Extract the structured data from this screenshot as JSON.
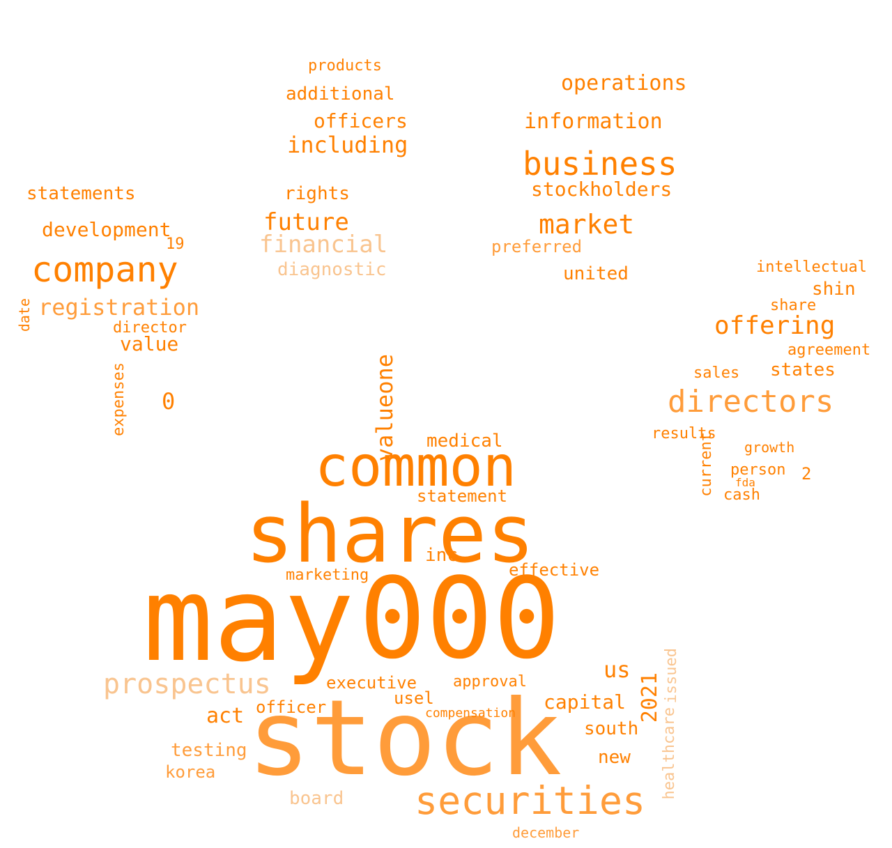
{
  "palette": {
    "strong": "#ff8000",
    "medium": "#ff9c3a",
    "light": "#f9c48f",
    "faint": "#f9dcc0"
  },
  "words": [
    "may",
    "000",
    "stock",
    "shares",
    "common",
    "securities",
    "prospectus",
    "company",
    "business",
    "directors",
    "offering",
    "market",
    "information",
    "financial",
    "registration",
    "including",
    "future",
    "development",
    "statements",
    "officers",
    "operations",
    "stockholders",
    "additional",
    "products",
    "preferred",
    "united",
    "diagnostic",
    "rights",
    "valueone",
    "medical",
    "statement",
    "board",
    "capital",
    "act",
    "testing",
    "korea",
    "south",
    "new",
    "executive",
    "2021",
    "us",
    "inc",
    "effective",
    "marketing",
    "approval",
    "compensation",
    "officer",
    "usel",
    "healthcare",
    "issued",
    "december",
    "value",
    "director",
    "expenses",
    "date",
    "0",
    "19",
    "intellectual",
    "shin",
    "share",
    "agreement",
    "states",
    "sales",
    "results",
    "current",
    "cash",
    "person",
    "growth",
    "2",
    "fda"
  ]
}
